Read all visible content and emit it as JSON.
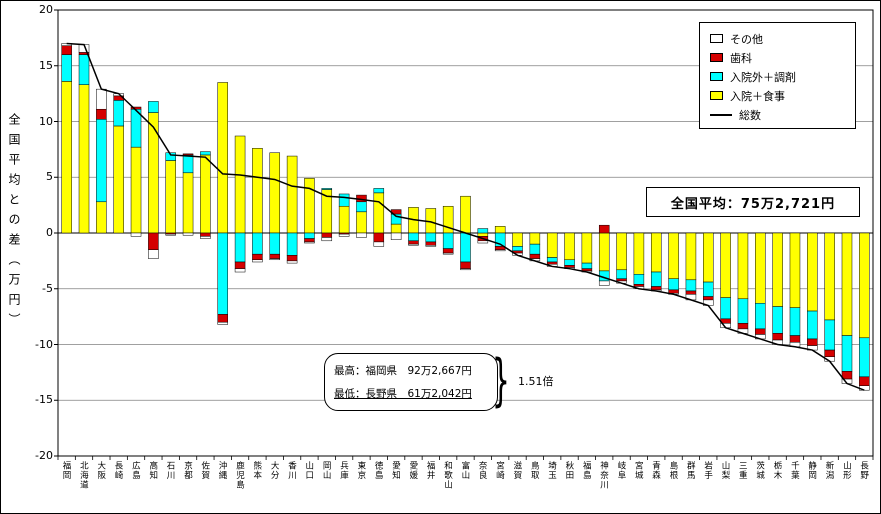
{
  "annotations": {
    "national_average": "全国平均：75万2,721円",
    "callout_high": "最高：福岡県　92万2,667円",
    "callout_low": "最低：長野県　61万2,042円",
    "ratio": "1.51倍"
  },
  "chart_data": {
    "type": "bar",
    "subtype": "stacked-bar-with-line",
    "title": "",
    "xlabel": "",
    "ylabel": "全国平均との差（万円）",
    "ylim": [
      -20,
      20
    ],
    "ytick_interval": 5,
    "y_ticks": [
      20,
      15,
      10,
      5,
      0,
      -5,
      -10,
      -15,
      -20
    ],
    "grid": true,
    "legend_position": "top-right",
    "categories": [
      "福岡",
      "北海道",
      "大阪",
      "長崎",
      "広島",
      "高知",
      "石川",
      "京都",
      "佐賀",
      "沖縄",
      "鹿児島",
      "熊本",
      "大分",
      "香川",
      "山口",
      "岡山",
      "兵庫",
      "東京",
      "徳島",
      "愛知",
      "愛媛",
      "福井",
      "和歌山",
      "富山",
      "奈良",
      "宮崎",
      "滋賀",
      "鳥取",
      "埼玉",
      "秋田",
      "福島",
      "神奈川",
      "岐阜",
      "宮城",
      "青森",
      "島根",
      "群馬",
      "岩手",
      "山梨",
      "三重",
      "茨城",
      "栃木",
      "千葉",
      "静岡",
      "新潟",
      "山形",
      "長野"
    ],
    "series": [
      {
        "name": "入院＋食事",
        "color": "#FFFF00",
        "values": [
          13.6,
          13.3,
          2.8,
          9.6,
          7.7,
          10.8,
          6.5,
          5.4,
          7.0,
          13.5,
          8.7,
          7.6,
          7.2,
          6.9,
          4.9,
          3.9,
          2.4,
          1.9,
          3.6,
          0.8,
          2.3,
          2.2,
          2.4,
          3.3,
          -0.3,
          0.6,
          -1.2,
          -1.0,
          -2.2,
          -2.4,
          -2.7,
          -3.4,
          -3.3,
          -3.7,
          -3.5,
          -4.1,
          -4.2,
          -4.4,
          -5.8,
          -5.9,
          -6.3,
          -6.6,
          -6.7,
          -7.0,
          -7.8,
          -9.2,
          -9.4
        ]
      },
      {
        "name": "入院外＋調剤",
        "color": "#00FFFF",
        "values": [
          2.4,
          2.7,
          7.4,
          2.3,
          3.4,
          1.0,
          0.7,
          1.6,
          0.3,
          -7.3,
          -2.6,
          -1.9,
          -1.9,
          -2.0,
          -0.5,
          0.1,
          1.1,
          0.9,
          0.4,
          0.9,
          -0.7,
          -0.8,
          -1.4,
          -2.6,
          0.4,
          -1.2,
          -0.4,
          -0.9,
          -0.4,
          -0.5,
          -0.5,
          -0.9,
          -0.8,
          -0.9,
          -1.3,
          -1.0,
          -1.0,
          -1.3,
          -1.9,
          -2.2,
          -2.3,
          -2.4,
          -2.5,
          -2.5,
          -2.7,
          -3.2,
          -3.5
        ]
      },
      {
        "name": "歯科",
        "color": "#D40000",
        "values": [
          0.8,
          0.2,
          0.9,
          0.4,
          0.2,
          -1.5,
          -0.1,
          0.1,
          -0.3,
          -0.7,
          -0.6,
          -0.5,
          -0.4,
          -0.5,
          -0.3,
          -0.4,
          -0.1,
          0.6,
          -0.8,
          0.4,
          -0.3,
          -0.3,
          -0.4,
          -0.6,
          -0.4,
          -0.3,
          -0.2,
          -0.4,
          -0.2,
          -0.2,
          -0.2,
          0.7,
          -0.2,
          -0.2,
          -0.3,
          -0.3,
          -0.3,
          -0.3,
          -0.4,
          -0.5,
          -0.5,
          -0.6,
          -0.6,
          -0.6,
          -0.6,
          -0.7,
          -0.8
        ]
      },
      {
        "name": "その他",
        "color": "#FFFFFF",
        "values": [
          0.2,
          0.7,
          1.8,
          0.2,
          -0.3,
          -0.8,
          -0.1,
          -0.2,
          -0.2,
          -0.2,
          -0.3,
          -0.2,
          -0.1,
          -0.2,
          -0.1,
          -0.3,
          -0.2,
          -0.4,
          -0.4,
          -0.6,
          -0.1,
          -0.1,
          -0.1,
          -0.1,
          -0.2,
          -0.1,
          -0.2,
          -0.2,
          -0.2,
          -0.1,
          -0.1,
          -0.4,
          -0.2,
          -0.2,
          -0.1,
          -0.1,
          -0.5,
          -0.5,
          -0.4,
          -0.4,
          -0.4,
          -0.4,
          -0.4,
          -0.4,
          -0.4,
          -0.4,
          -0.4
        ]
      }
    ],
    "line_series": {
      "name": "総数",
      "color": "#000000",
      "values": [
        17.0,
        16.9,
        12.9,
        12.5,
        11.0,
        9.5,
        7.0,
        6.9,
        6.8,
        5.3,
        5.2,
        5.0,
        4.8,
        4.2,
        4.0,
        3.3,
        3.2,
        3.0,
        2.8,
        1.5,
        1.2,
        1.0,
        0.5,
        0.0,
        -0.5,
        -1.0,
        -2.0,
        -2.5,
        -3.0,
        -3.2,
        -3.5,
        -4.0,
        -4.5,
        -5.0,
        -5.2,
        -5.5,
        -6.0,
        -6.5,
        -8.5,
        -9.0,
        -9.5,
        -10.0,
        -10.2,
        -10.5,
        -11.5,
        -13.5,
        -14.1
      ]
    }
  }
}
